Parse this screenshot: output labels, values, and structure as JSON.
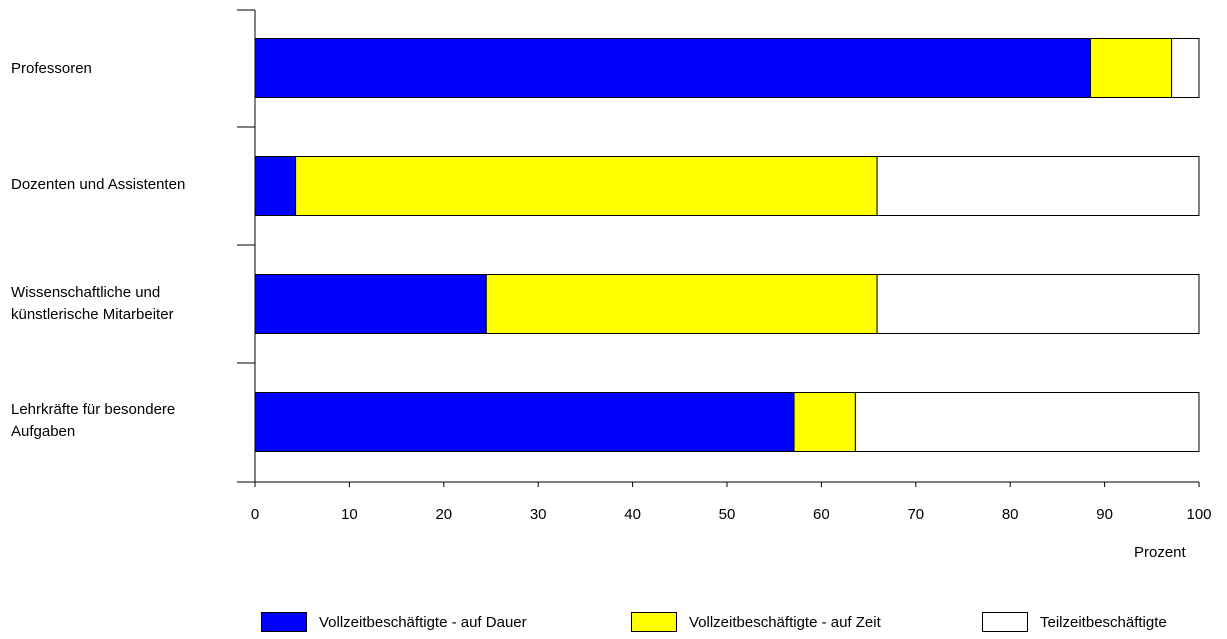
{
  "chart_data": {
    "type": "bar",
    "orientation": "horizontal",
    "stacked": true,
    "categories": [
      "Professoren",
      "Dozenten und Assistenten",
      "Wissenschaftliche und\nkünstlerische Mitarbeiter",
      "Lehrkräfte für besondere\nAufgaben"
    ],
    "series": [
      {
        "name": "Vollzeitbeschäftigte - auf Dauer",
        "color": "#0000ff",
        "values": [
          88.5,
          4.3,
          24.5,
          57.1
        ]
      },
      {
        "name": "Vollzeitbeschäftigte - auf Zeit",
        "color": "#ffff00",
        "values": [
          8.6,
          61.6,
          41.4,
          6.5
        ]
      },
      {
        "name": "Teilzeitbeschäftigte",
        "color": "#ffffff",
        "values": [
          2.9,
          34.1,
          34.1,
          36.4
        ]
      }
    ],
    "xlabel": "Prozent",
    "xlim": [
      0,
      100
    ],
    "xticks": [
      0,
      10,
      20,
      30,
      40,
      50,
      60,
      70,
      80,
      90,
      100
    ],
    "legend_position": "bottom",
    "grid": false
  }
}
